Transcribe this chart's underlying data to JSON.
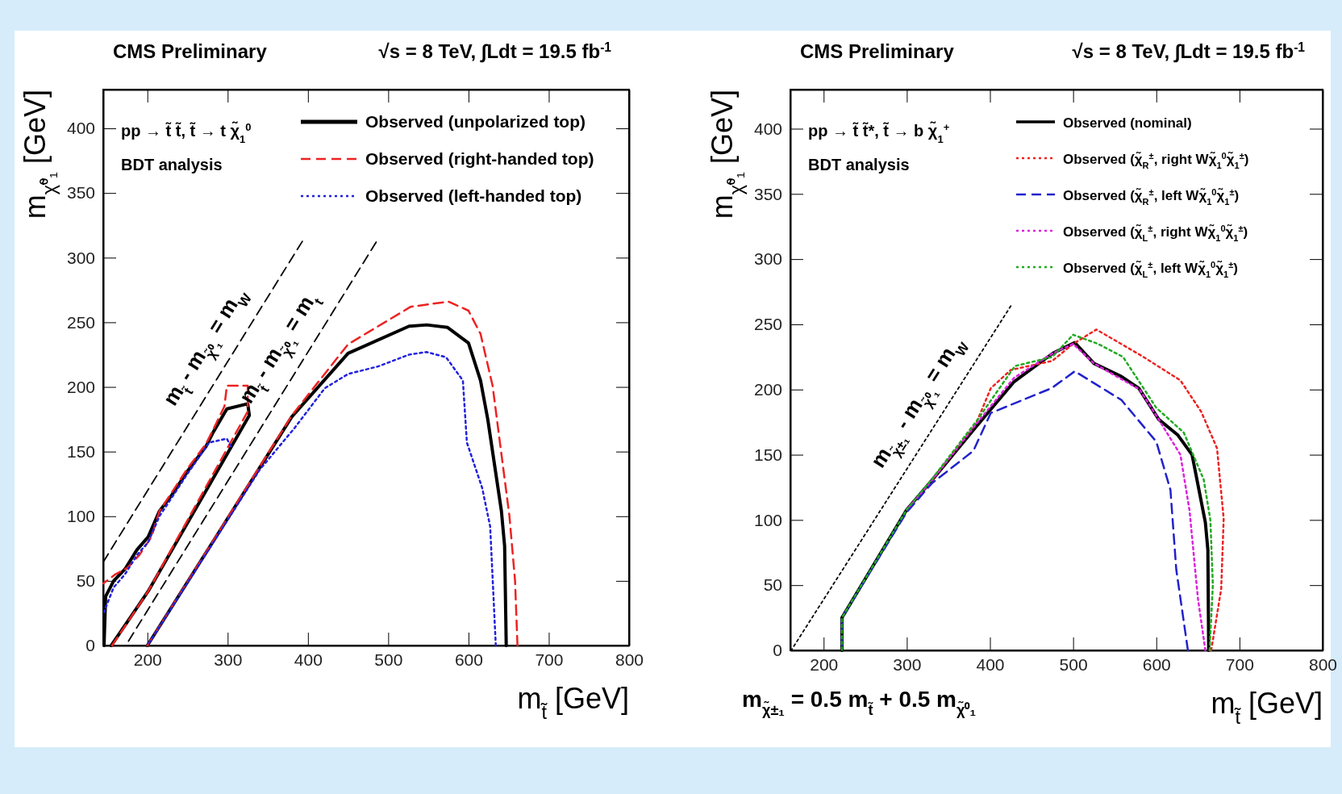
{
  "chart_data": [
    {
      "type": "line",
      "title": "CMS Preliminary",
      "subtitle": "√s = 8 TeV, ∫Ldt = 19.5 fb$^{-1}$",
      "xlabel": "m$_{t̃}$  [GeV]",
      "ylabel": "m$_{χ̃⁰₁}$  [GeV]",
      "xlim": [
        145,
        800
      ],
      "ylim": [
        0,
        430
      ],
      "xticks": [
        200,
        300,
        400,
        500,
        600,
        700,
        800
      ],
      "yticks": [
        0,
        50,
        100,
        150,
        200,
        250,
        300,
        350,
        400
      ],
      "legend": "top right",
      "annotations": [
        "pp → t̃ t̃, t̃ → t χ̃$_{1}$$^{0}$",
        "BDT analysis",
        {
          "text": "m$_{t̃}$ - m$_{χ̃⁰₁}$ = m$_{W}$",
          "x": 300,
          "y": 220
        },
        {
          "text": "m$_{t̃}$ - m$_{χ̃⁰₁}$ = m$_{t}$",
          "x": 392,
          "y": 219
        }
      ],
      "series": [
        {
          "name": "Observed (unpolarized top)",
          "color": "#000000",
          "line_style": "solid",
          "x": [
            146,
            148,
            158,
            172,
            187,
            201,
            215,
            230,
            249,
            273,
            282,
            299,
            325,
            327,
            201,
            155
          ],
          "values": [
            0,
            38,
            50,
            59,
            74,
            84,
            104,
            116,
            134,
            154,
            165,
            183,
            187,
            178,
            42,
            0
          ]
        },
        {
          "name": null,
          "color": "#000000",
          "line_style": "solid",
          "x": [
            200,
            380,
            450,
            526,
            548,
            574,
            600,
            615,
            624,
            641,
            645,
            647
          ],
          "values": [
            0,
            177,
            226,
            247,
            248,
            246,
            234,
            205,
            175,
            104,
            77,
            0
          ]
        },
        {
          "name": "Observed (right-handed top)",
          "color": "#ee2222",
          "line_style": "dashed",
          "x": [
            145,
            160,
            175,
            190,
            205,
            215,
            230,
            249,
            273,
            282,
            296,
            299,
            325,
            325,
            201,
            156
          ],
          "values": [
            48,
            55,
            60,
            70,
            84,
            104,
            118,
            136,
            156,
            167,
            185,
            201,
            201,
            181,
            42,
            0
          ]
        },
        {
          "name": null,
          "color": "#ee2222",
          "line_style": "dashed",
          "x": [
            200,
            380,
            450,
            528,
            575,
            600,
            615,
            630,
            651,
            658,
            661
          ],
          "values": [
            0,
            178,
            233,
            262,
            266,
            259,
            241,
            201,
            100,
            50,
            0
          ]
        },
        {
          "name": "Observed (left-handed top)",
          "color": "#2222dd",
          "line_style": "dotted",
          "x": [
            146,
            158,
            172,
            187,
            201,
            215,
            230,
            249,
            277,
            299,
            304
          ],
          "values": [
            26,
            45,
            55,
            70,
            80,
            100,
            114,
            132,
            157,
            160,
            154
          ]
        },
        {
          "name": null,
          "color": "#2222dd",
          "line_style": "dotted",
          "x": [
            200,
            340,
            383,
            421,
            450,
            488,
            526,
            548,
            572,
            593,
            598,
            617,
            627,
            634
          ],
          "values": [
            0,
            136,
            168,
            199,
            210,
            216,
            225,
            227,
            223,
            205,
            157,
            122,
            92,
            0
          ]
        },
        {
          "color": "#000000",
          "line_style": "dashed",
          "x": [
            145,
            393
          ],
          "values": [
            64.6,
            312.6
          ]
        },
        {
          "color": "#000000",
          "line_style": "dashed",
          "x": [
            173,
            485
          ],
          "values": [
            0,
            312
          ]
        }
      ]
    },
    {
      "type": "line",
      "title": "CMS Preliminary",
      "subtitle": "√s = 8 TeV, ∫Ldt = 19.5 fb$^{-1}$",
      "xlabel": "m$_{t̃}$  [GeV]",
      "ylabel": "m$_{χ̃⁰₁}$  [GeV]",
      "xlim": [
        160,
        800
      ],
      "ylim": [
        0,
        430
      ],
      "xticks": [
        200,
        300,
        400,
        500,
        600,
        700,
        800
      ],
      "yticks": [
        0,
        50,
        100,
        150,
        200,
        250,
        300,
        350,
        400
      ],
      "legend": "top right",
      "annotations": [
        "pp → t̃ t̃*, t̃ → b χ̃$_{1}$$^{+}$",
        "BDT analysis",
        "m$_{χ̃±₁}$ = 0.5 m$_{t̃}$ + 0.5 m$_{χ̃⁰₁}$",
        {
          "text": "m$_{χ̃±₁}$ - m$_{χ̃⁰₁}$ = m$_{W}$",
          "x": 340,
          "y": 179
        }
      ],
      "series": [
        {
          "name": "Observed (nominal)",
          "color": "#000000",
          "line_style": "solid",
          "x": [
            222,
            222,
            300,
            331,
            384,
            429,
            476,
            502,
            525,
            558,
            579,
            603,
            626,
            643,
            659,
            662,
            663
          ],
          "values": [
            0,
            25,
            108,
            131,
            172,
            206,
            228,
            236,
            220,
            210,
            201,
            177,
            165,
            150,
            98,
            77,
            0
          ]
        },
        {
          "name": "Observed (χ̃$_{R}$$^{±}$, right Wχ̃$_{1}$$^{0}$χ̃$_{1}$$^{±}$)",
          "color": "#ee2222",
          "line_style": "dotted",
          "x": [
            331,
            384,
            401,
            425,
            475,
            500,
            528,
            582,
            629,
            654,
            673,
            681,
            678,
            666
          ],
          "values": [
            131,
            175,
            201,
            215,
            222,
            235,
            246,
            226,
            207,
            183,
            155,
            101,
            47,
            0
          ]
        },
        {
          "name": "Observed (χ̃$_{R}$$^{±}$, left Wχ̃$_{1}$$^{0}$χ̃$_{1}$$^{±}$)",
          "color": "#2222cc",
          "line_style": "dashed",
          "x": [
            222,
            222,
            300,
            330,
            380,
            401,
            474,
            502,
            558,
            600,
            617,
            624,
            638
          ],
          "values": [
            0,
            25,
            106,
            128,
            153,
            182,
            201,
            214,
            192,
            160,
            123,
            62,
            0
          ]
        },
        {
          "name": "Observed (χ̃$_{L}$$^{±}$, right Wχ̃$_{1}$$^{0}$χ̃$_{1}$$^{±}$)",
          "color": "#dd22dd",
          "line_style": "dotted",
          "x": [
            300,
            331,
            384,
            429,
            476,
            500,
            525,
            580,
            603,
            629,
            640,
            650,
            659
          ],
          "values": [
            108,
            131,
            174,
            209,
            228,
            235,
            220,
            200,
            177,
            150,
            107,
            40,
            0
          ]
        },
        {
          "name": "Observed (χ̃$_{L}$$^{±}$, left Wχ̃$_{1}$$^{0}$χ̃$_{1}$$^{±}$)",
          "color": "#22aa22",
          "line_style": "dotted",
          "x": [
            222,
            222,
            300,
            331,
            384,
            430,
            475,
            500,
            530,
            560,
            600,
            633,
            657,
            665,
            668,
            664
          ],
          "values": [
            0,
            25,
            108,
            132,
            176,
            218,
            225,
            242,
            235,
            225,
            186,
            167,
            131,
            100,
            50,
            0
          ]
        },
        {
          "color": "#000000",
          "line_style": "dotted",
          "x": [
            161,
            425
          ],
          "values": [
            0,
            264
          ]
        }
      ]
    }
  ]
}
